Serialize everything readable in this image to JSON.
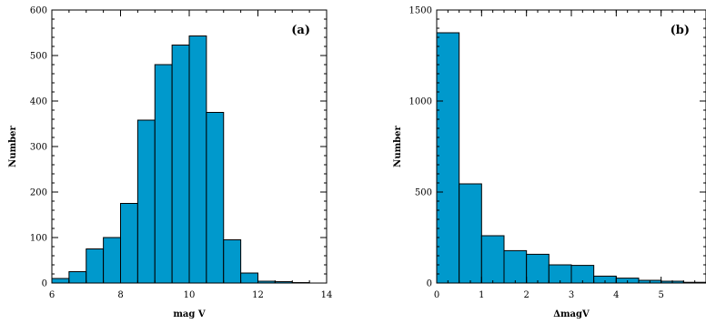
{
  "chart_data": [
    {
      "type": "bar",
      "panel_label": "(a)",
      "xlabel": "mag V",
      "ylabel": "Number",
      "xlim": [
        6,
        14
      ],
      "ylim": [
        0,
        600
      ],
      "xticks": [
        6,
        8,
        10,
        12,
        14
      ],
      "yticks": [
        0,
        100,
        200,
        300,
        400,
        500,
        600
      ],
      "bin_width": 0.5,
      "bin_edges": [
        6.0,
        6.5,
        7.0,
        7.5,
        8.0,
        8.5,
        9.0,
        9.5,
        10.0,
        10.5,
        11.0,
        11.5,
        12.0,
        12.5,
        13.0,
        13.5
      ],
      "values": [
        10,
        25,
        75,
        100,
        175,
        358,
        480,
        523,
        543,
        375,
        95,
        22,
        4,
        3,
        1
      ],
      "fill_color": "#0099cc"
    },
    {
      "type": "bar",
      "panel_label": "(b)",
      "xlabel": "ΔmagV",
      "ylabel": "Number",
      "xlim": [
        0,
        6
      ],
      "ylim": [
        0,
        1500
      ],
      "xticks": [
        0,
        1,
        2,
        3,
        4,
        5
      ],
      "yticks": [
        0,
        500,
        1000,
        1500
      ],
      "bin_width": 0.5,
      "bin_edges": [
        0.0,
        0.5,
        1.0,
        1.5,
        2.0,
        2.5,
        3.0,
        3.5,
        4.0,
        4.5,
        5.0,
        5.5
      ],
      "values": [
        1375,
        545,
        260,
        178,
        158,
        100,
        97,
        38,
        27,
        15,
        10,
        4
      ],
      "fill_color": "#0099cc"
    }
  ]
}
